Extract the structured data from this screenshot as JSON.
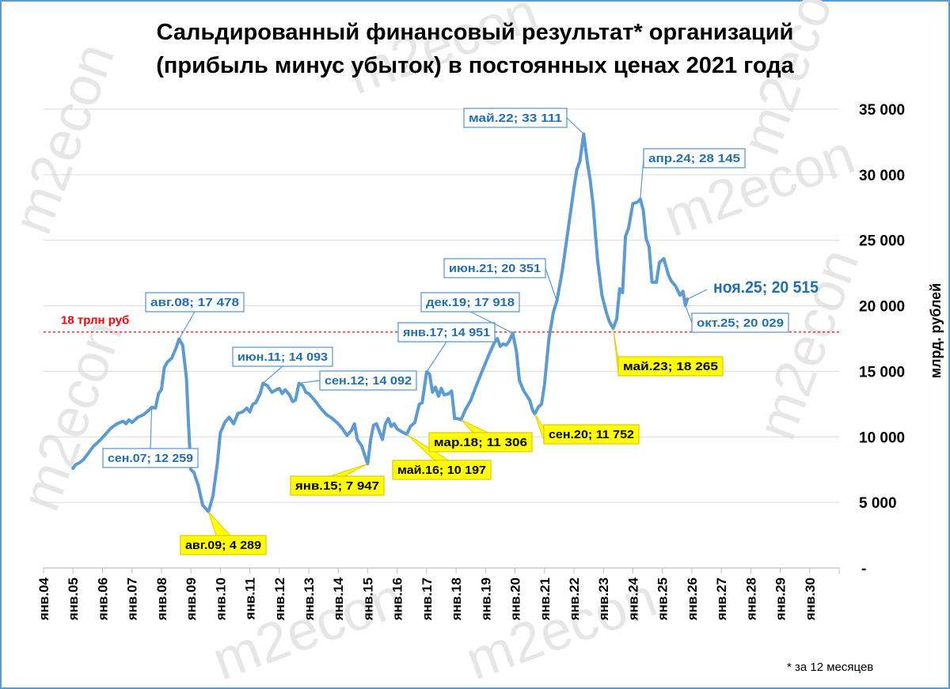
{
  "watermark": "m2econ",
  "chart_data": {
    "type": "line",
    "title_line1": "Сальдированный финансовый результат* организаций",
    "title_line2": "(прибыль минус убыток) в постоянных ценах 2021 года",
    "ylabel": "млрд. рублей",
    "ylim": [
      0,
      35000
    ],
    "yticks": [
      "-",
      "5 000",
      "10 000",
      "15 000",
      "20 000",
      "25 000",
      "30 000",
      "35 000"
    ],
    "x_range": [
      2004,
      2031
    ],
    "xticks": [
      "янв.04",
      "янв.05",
      "янв.06",
      "янв.07",
      "янв.08",
      "янв.09",
      "янв.10",
      "янв.11",
      "янв.12",
      "янв.13",
      "янв.14",
      "янв.15",
      "янв.16",
      "янв.17",
      "янв.18",
      "янв.19",
      "янв.20",
      "янв.21",
      "янв.22",
      "янв.23",
      "янв.24",
      "янв.25",
      "янв.26",
      "янв.27",
      "янв.28",
      "янв.29",
      "янв.30"
    ],
    "grid": true,
    "footnote": "* за 12 месяцев",
    "reference_line": {
      "value": 18000,
      "label": "18 трлн руб",
      "color": "#ff0000"
    },
    "series_color": "#5b9bd5",
    "series": [
      {
        "points": [
          [
            2005.0,
            7600
          ],
          [
            2005.1,
            7900
          ],
          [
            2005.2,
            8000
          ],
          [
            2005.35,
            8250
          ],
          [
            2005.5,
            8700
          ],
          [
            2005.7,
            9300
          ],
          [
            2005.9,
            9700
          ],
          [
            2006.1,
            10200
          ],
          [
            2006.3,
            10700
          ],
          [
            2006.5,
            11000
          ],
          [
            2006.7,
            11200
          ],
          [
            2006.8,
            11000
          ],
          [
            2006.9,
            11300
          ],
          [
            2007.0,
            11100
          ],
          [
            2007.2,
            11500
          ],
          [
            2007.4,
            11700
          ],
          [
            2007.6,
            12100
          ],
          [
            2007.67,
            12259
          ],
          [
            2007.8,
            12200
          ],
          [
            2007.9,
            13300
          ],
          [
            2008.0,
            13600
          ],
          [
            2008.1,
            15300
          ],
          [
            2008.2,
            15700
          ],
          [
            2008.35,
            16000
          ],
          [
            2008.5,
            16800
          ],
          [
            2008.6,
            17478
          ],
          [
            2008.72,
            17000
          ],
          [
            2008.85,
            14500
          ],
          [
            2008.92,
            11000
          ],
          [
            2009.0,
            7500
          ],
          [
            2009.1,
            7300
          ],
          [
            2009.25,
            6300
          ],
          [
            2009.4,
            4800
          ],
          [
            2009.6,
            4289
          ],
          [
            2009.75,
            5500
          ],
          [
            2009.9,
            8000
          ],
          [
            2010.0,
            10300
          ],
          [
            2010.15,
            11100
          ],
          [
            2010.3,
            11500
          ],
          [
            2010.45,
            11000
          ],
          [
            2010.6,
            11800
          ],
          [
            2010.75,
            11900
          ],
          [
            2010.9,
            12200
          ],
          [
            2011.0,
            11900
          ],
          [
            2011.1,
            12500
          ],
          [
            2011.2,
            12600
          ],
          [
            2011.35,
            13300
          ],
          [
            2011.45,
            14093
          ],
          [
            2011.6,
            13900
          ],
          [
            2011.75,
            13400
          ],
          [
            2011.9,
            13600
          ],
          [
            2012.0,
            13700
          ],
          [
            2012.1,
            13300
          ],
          [
            2012.2,
            13600
          ],
          [
            2012.35,
            13200
          ],
          [
            2012.45,
            12700
          ],
          [
            2012.55,
            12800
          ],
          [
            2012.67,
            14092
          ],
          [
            2012.8,
            13900
          ],
          [
            2012.9,
            13400
          ],
          [
            2013.0,
            13300
          ],
          [
            2013.2,
            12800
          ],
          [
            2013.4,
            12200
          ],
          [
            2013.6,
            11700
          ],
          [
            2013.8,
            11400
          ],
          [
            2014.0,
            11000
          ],
          [
            2014.15,
            10600
          ],
          [
            2014.3,
            10100
          ],
          [
            2014.45,
            10500
          ],
          [
            2014.55,
            11000
          ],
          [
            2014.65,
            9800
          ],
          [
            2014.8,
            9300
          ],
          [
            2014.9,
            8600
          ],
          [
            2015.0,
            7947
          ],
          [
            2015.1,
            9800
          ],
          [
            2015.2,
            10900
          ],
          [
            2015.3,
            11000
          ],
          [
            2015.4,
            10400
          ],
          [
            2015.5,
            9800
          ],
          [
            2015.6,
            11000
          ],
          [
            2015.7,
            11400
          ],
          [
            2015.8,
            10800
          ],
          [
            2015.9,
            11000
          ],
          [
            2016.0,
            10600
          ],
          [
            2016.15,
            10400
          ],
          [
            2016.33,
            10197
          ],
          [
            2016.45,
            10800
          ],
          [
            2016.6,
            11100
          ],
          [
            2016.75,
            12500
          ],
          [
            2016.85,
            12600
          ],
          [
            2017.0,
            14951
          ],
          [
            2017.1,
            14800
          ],
          [
            2017.2,
            13400
          ],
          [
            2017.3,
            13800
          ],
          [
            2017.4,
            13100
          ],
          [
            2017.5,
            13700
          ],
          [
            2017.6,
            13200
          ],
          [
            2017.75,
            13300
          ],
          [
            2017.85,
            13500
          ],
          [
            2017.95,
            11400
          ],
          [
            2018.05,
            11400
          ],
          [
            2018.17,
            11306
          ],
          [
            2018.3,
            12000
          ],
          [
            2018.5,
            12800
          ],
          [
            2018.7,
            14000
          ],
          [
            2018.9,
            15100
          ],
          [
            2019.1,
            16200
          ],
          [
            2019.3,
            17200
          ],
          [
            2019.4,
            17500
          ],
          [
            2019.5,
            16900
          ],
          [
            2019.6,
            17100
          ],
          [
            2019.7,
            17000
          ],
          [
            2019.8,
            17300
          ],
          [
            2019.92,
            17918
          ],
          [
            2020.05,
            16500
          ],
          [
            2020.15,
            14300
          ],
          [
            2020.3,
            13500
          ],
          [
            2020.5,
            12800
          ],
          [
            2020.6,
            12000
          ],
          [
            2020.67,
            11752
          ],
          [
            2020.8,
            12300
          ],
          [
            2020.9,
            12500
          ],
          [
            2021.0,
            14000
          ],
          [
            2021.15,
            17500
          ],
          [
            2021.3,
            19500
          ],
          [
            2021.42,
            20351
          ],
          [
            2021.6,
            22600
          ],
          [
            2021.8,
            25800
          ],
          [
            2022.0,
            29000
          ],
          [
            2022.1,
            30400
          ],
          [
            2022.2,
            31000
          ],
          [
            2022.33,
            33111
          ],
          [
            2022.45,
            31000
          ],
          [
            2022.55,
            29600
          ],
          [
            2022.65,
            27700
          ],
          [
            2022.8,
            23500
          ],
          [
            2022.95,
            20800
          ],
          [
            2023.1,
            19500
          ],
          [
            2023.2,
            18800
          ],
          [
            2023.33,
            18265
          ],
          [
            2023.45,
            19000
          ],
          [
            2023.55,
            21300
          ],
          [
            2023.65,
            21000
          ],
          [
            2023.75,
            25300
          ],
          [
            2023.85,
            25900
          ],
          [
            2024.0,
            27800
          ],
          [
            2024.15,
            27900
          ],
          [
            2024.25,
            28145
          ],
          [
            2024.35,
            27300
          ],
          [
            2024.45,
            25100
          ],
          [
            2024.55,
            24500
          ],
          [
            2024.65,
            21800
          ],
          [
            2024.8,
            21800
          ],
          [
            2024.9,
            23300
          ],
          [
            2025.05,
            23600
          ],
          [
            2025.2,
            22400
          ],
          [
            2025.3,
            21900
          ],
          [
            2025.45,
            21500
          ],
          [
            2025.6,
            20800
          ],
          [
            2025.7,
            21100
          ],
          [
            2025.78,
            20029
          ],
          [
            2025.85,
            20515
          ]
        ]
      }
    ],
    "annotations": [
      {
        "label": "авг.08;  17 478",
        "x": 2008.6,
        "y": 17478,
        "style": "normal"
      },
      {
        "label": "сен.07;  12 259",
        "x": 2007.67,
        "y": 12259,
        "style": "normal"
      },
      {
        "label": "авг.09;  4 289",
        "x": 2009.6,
        "y": 4289,
        "style": "highlight"
      },
      {
        "label": "июн.11;  14 093",
        "x": 2011.45,
        "y": 14093,
        "style": "normal"
      },
      {
        "label": "сен.12;  14 092",
        "x": 2012.67,
        "y": 14092,
        "style": "normal"
      },
      {
        "label": "янв.15;  7 947",
        "x": 2015.0,
        "y": 7947,
        "style": "highlight"
      },
      {
        "label": "май.16;  10 197",
        "x": 2016.33,
        "y": 10197,
        "style": "highlight"
      },
      {
        "label": "янв.17;  14 951",
        "x": 2017.0,
        "y": 14951,
        "style": "normal"
      },
      {
        "label": "мар.18;  11 306",
        "x": 2018.17,
        "y": 11306,
        "style": "highlight"
      },
      {
        "label": "дек.19;  17 918",
        "x": 2019.92,
        "y": 17918,
        "style": "normal"
      },
      {
        "label": "сен.20;  11 752",
        "x": 2020.67,
        "y": 11752,
        "style": "highlight"
      },
      {
        "label": "июн.21;  20 351",
        "x": 2021.42,
        "y": 20351,
        "style": "normal"
      },
      {
        "label": "май.22;  33 111",
        "x": 2022.33,
        "y": 33111,
        "style": "normal"
      },
      {
        "label": "май.23;  18 265",
        "x": 2023.33,
        "y": 18265,
        "style": "highlight"
      },
      {
        "label": "апр.24;  28 145",
        "x": 2024.25,
        "y": 28145,
        "style": "normal"
      },
      {
        "label": "окт.25;  20 029",
        "x": 2025.78,
        "y": 20029,
        "style": "normal"
      },
      {
        "label": "ноя.25;  20 515",
        "x": 2025.85,
        "y": 20515,
        "style": "big"
      }
    ]
  }
}
